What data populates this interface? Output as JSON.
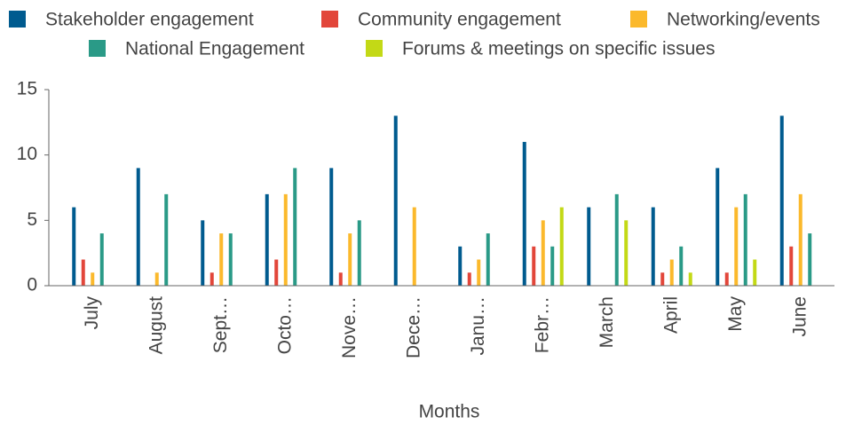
{
  "chart_data": {
    "type": "bar",
    "categories": [
      "July",
      "August",
      "Sept…",
      "Octo…",
      "Nove…",
      "Dece…",
      "Janu…",
      "Febr…",
      "March",
      "April",
      "May",
      "June"
    ],
    "series": [
      {
        "name": "Stakeholder engagement",
        "color": "#005b8f",
        "values": [
          6,
          9,
          5,
          7,
          9,
          13,
          3,
          11,
          6,
          6,
          9,
          13
        ]
      },
      {
        "name": "Community engagement",
        "color": "#e2463a",
        "values": [
          2,
          0,
          1,
          2,
          1,
          0,
          1,
          3,
          0,
          1,
          1,
          3
        ]
      },
      {
        "name": "Networking/events",
        "color": "#fbb92c",
        "values": [
          1,
          1,
          4,
          7,
          4,
          6,
          2,
          5,
          0,
          2,
          6,
          7
        ]
      },
      {
        "name": "National Engagement",
        "color": "#2a9a87",
        "values": [
          4,
          7,
          4,
          9,
          5,
          0,
          4,
          3,
          7,
          3,
          7,
          4
        ]
      },
      {
        "name": "Forums & meetings on specific issues",
        "color": "#c3d916",
        "values": [
          0,
          0,
          0,
          0,
          0,
          0,
          0,
          6,
          5,
          1,
          2,
          0
        ]
      }
    ],
    "xlabel": "Months",
    "ylim": [
      0,
      15
    ],
    "yticks": [
      0,
      5,
      10,
      15
    ],
    "grid": false,
    "legend": "top"
  }
}
